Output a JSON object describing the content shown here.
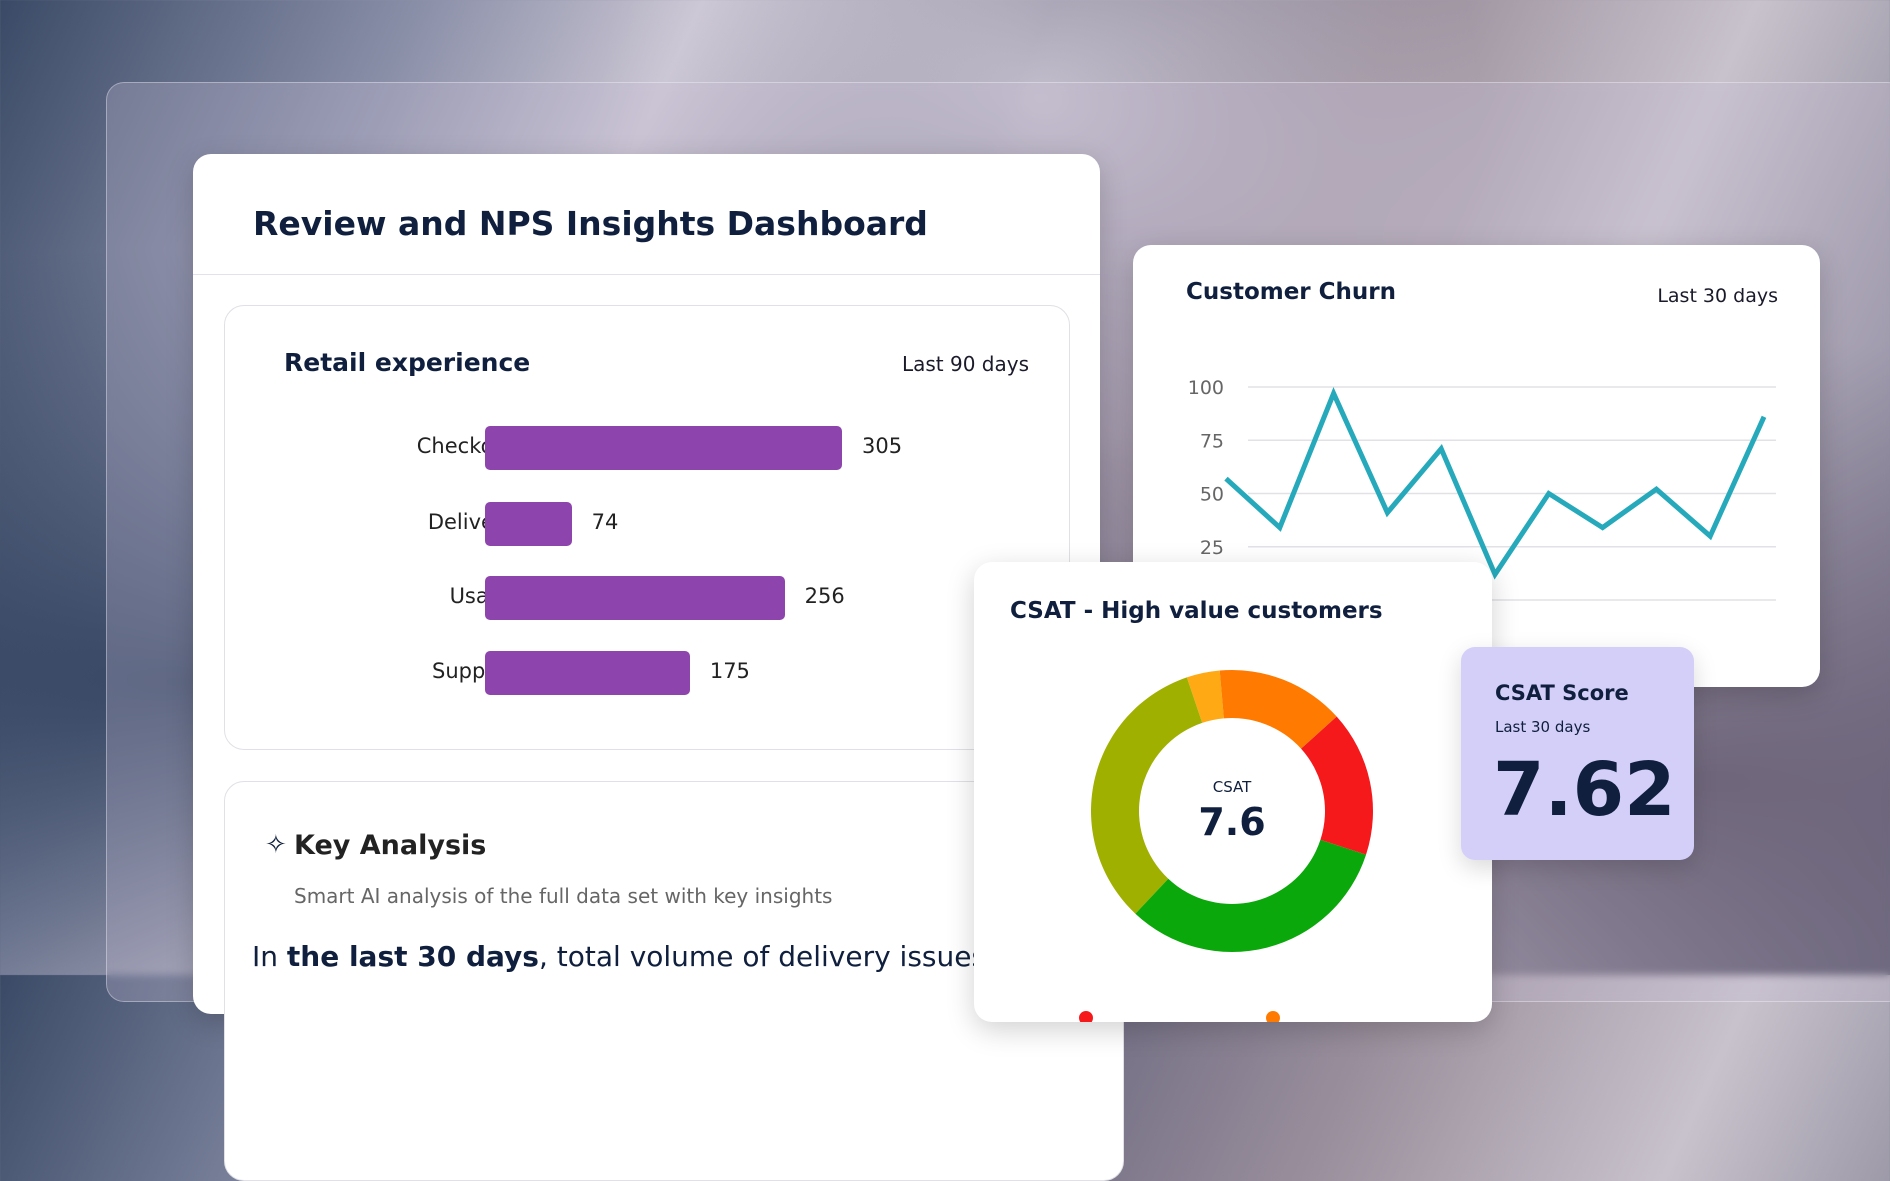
{
  "dashboard": {
    "title": "Review and NPS Insights Dashboard"
  },
  "retail": {
    "title": "Retail experience",
    "period": "Last 90 days",
    "bars": [
      {
        "label": "Checkout",
        "value": 305
      },
      {
        "label": "Delivery",
        "value": 74
      },
      {
        "label": "Usage",
        "value": 256
      },
      {
        "label": "Support",
        "value": 175
      }
    ],
    "bar_color": "#8e44ad"
  },
  "analysis": {
    "icon": "sparkles-icon",
    "title": "Key Analysis",
    "subtitle": "Smart AI analysis of the full data set with key insights",
    "body_prefix": "In ",
    "body_bold": "the last 30 days",
    "body_suffix": ", total volume of delivery issues"
  },
  "chart_data": [
    {
      "type": "line",
      "title": "Customer Churn",
      "period": "Last 30 days",
      "ylim": [
        0,
        100
      ],
      "yticks": [
        "100",
        "75",
        "50",
        "25"
      ],
      "grid": true,
      "color": "#25a9bb",
      "values": [
        57,
        34,
        97,
        41,
        71,
        12,
        50,
        34,
        52,
        30,
        86
      ]
    },
    {
      "type": "pie",
      "title": "CSAT - High value customers",
      "center_label": "CSAT",
      "center_value": "7.6",
      "slices": [
        {
          "color": "#ff7a00",
          "percent": 14.7
        },
        {
          "color": "#f5191c",
          "percent": 16.7
        },
        {
          "color": "#0aa80a",
          "percent": 32
        },
        {
          "color": "#a0b000",
          "percent": 32.8
        },
        {
          "color": "#ffaa14",
          "percent": 3.8
        }
      ]
    }
  ],
  "score": {
    "title": "CSAT Score",
    "period": "Last 30 days",
    "value": "7.62",
    "bg": "#d4cff9"
  }
}
